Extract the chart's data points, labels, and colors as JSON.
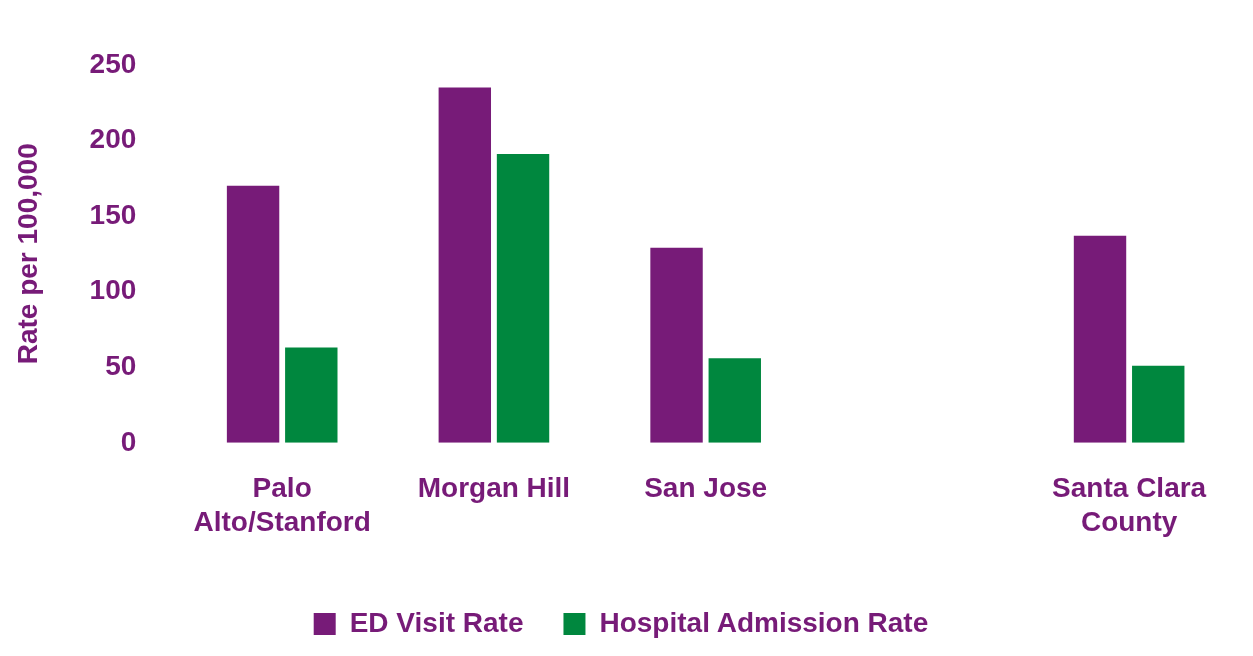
{
  "chart_data": {
    "type": "bar",
    "ylabel": "Rate per 100,000",
    "categories": [
      "Palo Alto/Stanford",
      "Morgan Hill",
      "San Jose",
      null,
      "Santa Clara County"
    ],
    "series": [
      {
        "name": "ED Visit Rate",
        "color": "#771b78",
        "values": [
          170,
          235,
          129,
          null,
          137
        ]
      },
      {
        "name": "Hospital Admission Rate",
        "color": "#00873e",
        "values": [
          63,
          191,
          56,
          null,
          51
        ]
      }
    ],
    "ylim": [
      0,
      250
    ],
    "yticks": [
      0,
      50,
      100,
      150,
      200,
      250
    ],
    "grid": false,
    "legend": "bottom"
  }
}
